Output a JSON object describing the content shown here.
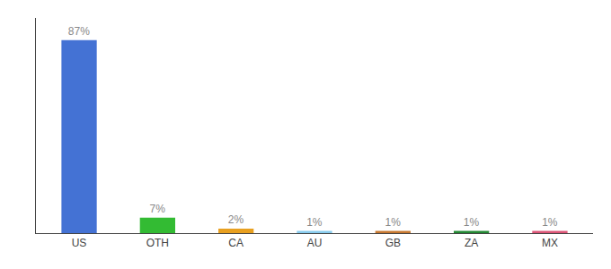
{
  "chart_data": {
    "type": "bar",
    "categories": [
      "US",
      "OTH",
      "CA",
      "AU",
      "GB",
      "ZA",
      "MX"
    ],
    "values": [
      87,
      7,
      2,
      1,
      1,
      1,
      1
    ],
    "value_labels": [
      "87%",
      "7%",
      "2%",
      "1%",
      "1%",
      "1%",
      "1%"
    ],
    "data_labels": true,
    "colors": [
      "#4472d4",
      "#33bb33",
      "#e8a020",
      "#88ccee",
      "#c87830",
      "#228833",
      "#dd5577"
    ],
    "ylim": [
      0,
      97
    ],
    "tick_labels": "x",
    "grid": false
  }
}
